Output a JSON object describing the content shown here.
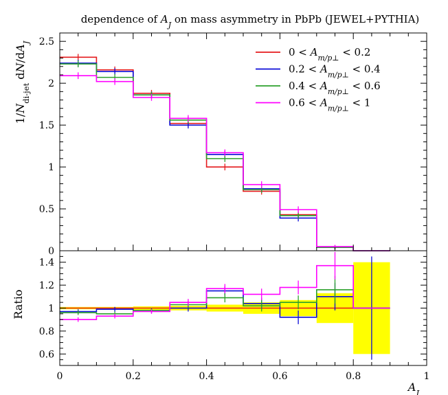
{
  "chart_data": {
    "type": "line",
    "title": "dependence of A_J on mass asymmetry in PbPb (JEWEL+PYTHIA)",
    "xlabel": "A_J",
    "main": {
      "ylabel": "1/N_di-jet dN/dA_J",
      "ylim": [
        0,
        2.6
      ],
      "yticks": [
        0,
        0.5,
        1,
        1.5,
        2,
        2.5
      ],
      "ytick_labels": [
        "0",
        "0.5",
        "1",
        "1.5",
        "2",
        "2.5"
      ]
    },
    "ratio": {
      "ylabel": "Ratio",
      "ylim": [
        0.5,
        1.5
      ],
      "yticks": [
        0.6,
        0.8,
        1.0,
        1.2,
        1.4
      ],
      "ytick_labels": [
        "0.6",
        "0.8",
        "1",
        "1.2",
        "1.4"
      ]
    },
    "xlim": [
      0,
      1
    ],
    "xticks": [
      0,
      0.2,
      0.4,
      0.6,
      0.8,
      1.0
    ],
    "xtick_labels": [
      "0",
      "0.2",
      "0.4",
      "0.6",
      "0.8",
      "1"
    ],
    "bin_edges": [
      0,
      0.1,
      0.2,
      0.3,
      0.4,
      0.5,
      0.6,
      0.7,
      0.8,
      0.9
    ],
    "series": [
      {
        "name": "0 < A_{m/p⊥} < 0.2",
        "color": "#e41a1c",
        "values": [
          2.31,
          2.16,
          1.88,
          1.52,
          1.0,
          0.71,
          0.43,
          0.04,
          0.0
        ],
        "errors": [
          0.04,
          0.04,
          0.04,
          0.04,
          0.04,
          0.04,
          0.04,
          0.02,
          0.0
        ],
        "ratio": [
          1.0,
          1.0,
          1.0,
          1.0,
          1.0,
          1.0,
          1.0,
          1.0,
          1.0
        ],
        "ratio_errors": [
          0.0,
          0.0,
          0.0,
          0.0,
          0.0,
          0.0,
          0.0,
          0.0,
          0.0
        ]
      },
      {
        "name": "0.2 < A_{m/p⊥} < 0.4",
        "color": "#0a0ad8",
        "values": [
          2.24,
          2.14,
          1.86,
          1.5,
          1.15,
          0.74,
          0.39,
          0.04,
          0.0
        ],
        "errors": [
          0.04,
          0.04,
          0.04,
          0.04,
          0.04,
          0.04,
          0.04,
          0.02,
          0.0
        ],
        "ratio": [
          0.97,
          0.99,
          0.98,
          1.0,
          1.15,
          1.04,
          0.92,
          1.1,
          1.0
        ],
        "ratio_errors": [
          0.02,
          0.02,
          0.02,
          0.03,
          0.04,
          0.05,
          0.06,
          0.12,
          0.45
        ]
      },
      {
        "name": "0.4 < A_{m/p⊥} < 0.6",
        "color": "#2ca02c",
        "values": [
          2.23,
          2.07,
          1.86,
          1.56,
          1.1,
          0.73,
          0.42,
          0.04,
          0.0
        ],
        "errors": [
          0.04,
          0.04,
          0.04,
          0.04,
          0.04,
          0.04,
          0.04,
          0.02,
          0.0
        ],
        "ratio": [
          0.96,
          0.95,
          0.98,
          1.03,
          1.09,
          1.02,
          1.05,
          1.16,
          1.0
        ],
        "ratio_errors": [
          0.02,
          0.02,
          0.02,
          0.03,
          0.04,
          0.05,
          0.06,
          0.12,
          0.0
        ]
      },
      {
        "name": "0.6 < A_{m/p⊥} < 1",
        "color": "#ff00ff",
        "values": [
          2.09,
          2.02,
          1.83,
          1.58,
          1.17,
          0.79,
          0.49,
          0.05,
          0.0
        ],
        "errors": [
          0.04,
          0.04,
          0.04,
          0.04,
          0.04,
          0.04,
          0.04,
          0.02,
          0.0
        ],
        "ratio": [
          0.9,
          0.93,
          0.97,
          1.05,
          1.17,
          1.12,
          1.18,
          1.37,
          1.0
        ],
        "ratio_errors": [
          0.02,
          0.02,
          0.02,
          0.03,
          0.04,
          0.05,
          0.06,
          0.12,
          0.0
        ]
      }
    ],
    "ratio_band": {
      "color": "#ffff00",
      "bin_edges": [
        0,
        0.1,
        0.2,
        0.3,
        0.4,
        0.5,
        0.6,
        0.7,
        0.8,
        0.9
      ],
      "lower": [
        0.99,
        0.99,
        0.985,
        0.98,
        0.97,
        0.95,
        0.93,
        0.87,
        0.6
      ],
      "upper": [
        1.01,
        1.01,
        1.015,
        1.02,
        1.03,
        1.05,
        1.07,
        1.13,
        1.4
      ]
    },
    "legend": "top-right",
    "grid": false
  }
}
